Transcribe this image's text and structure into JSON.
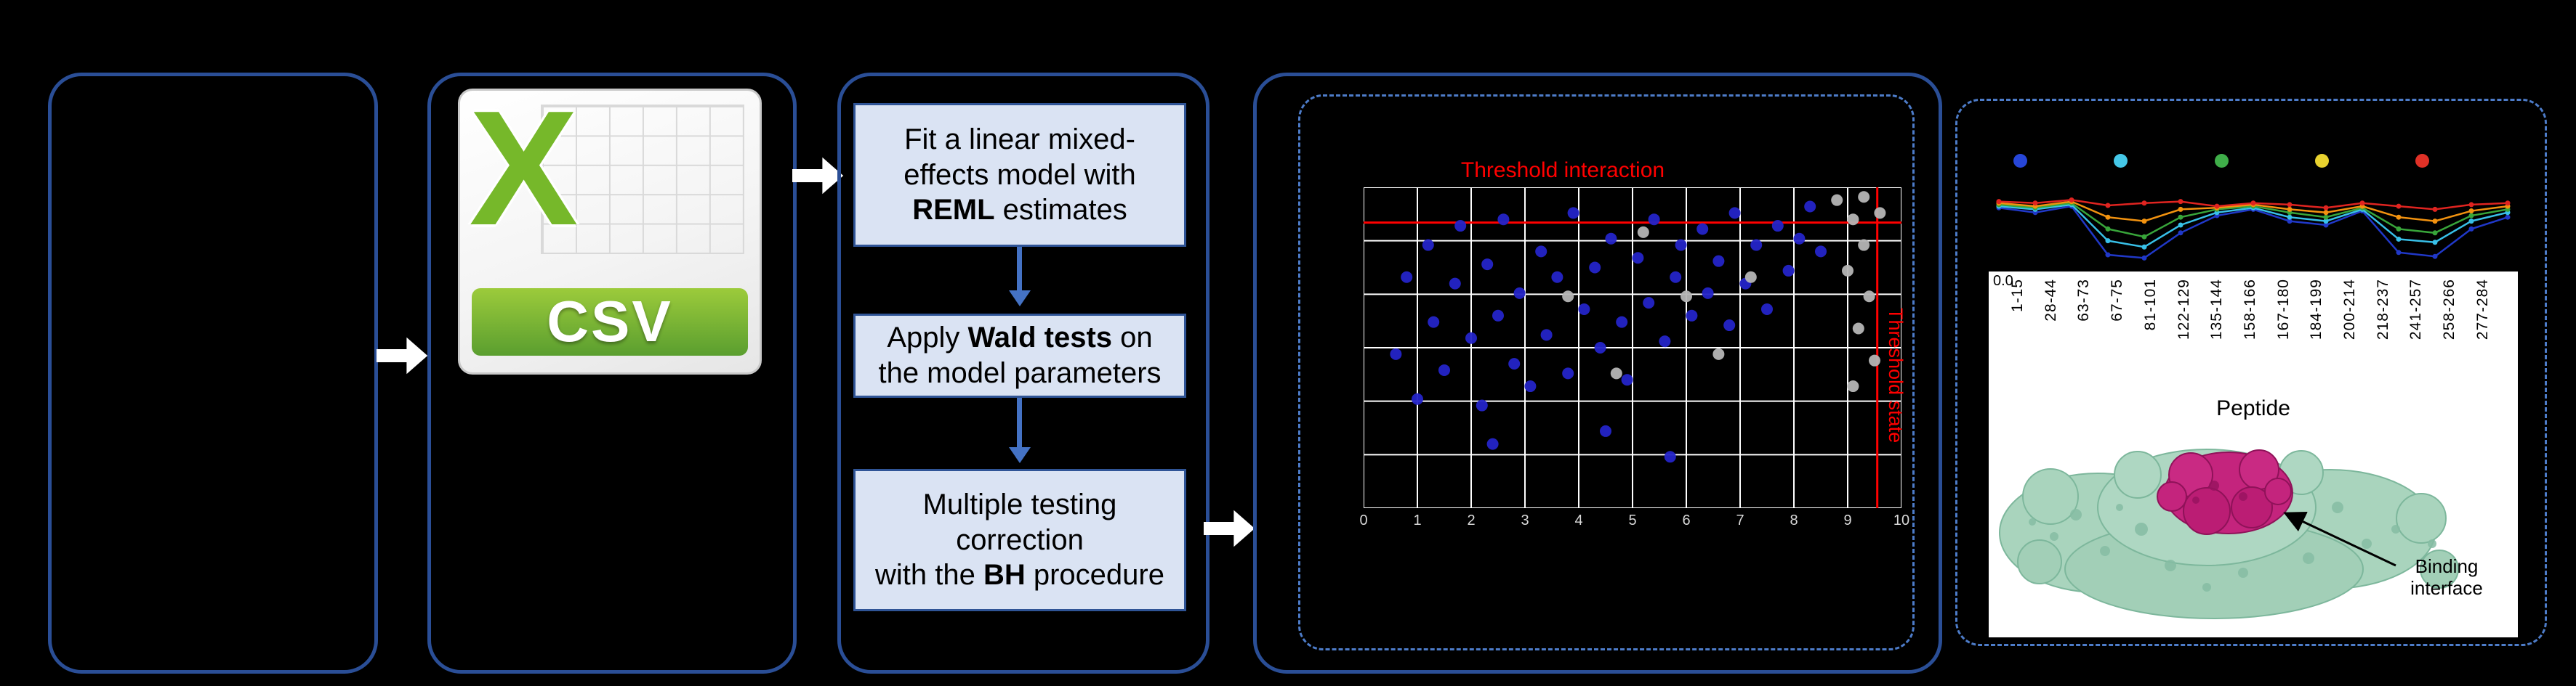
{
  "figure": {
    "background": "#000000",
    "solid_border_color": "#2a4e96",
    "dashed_border_color": "#4d7cc9"
  },
  "csv_icon": {
    "letter": "X",
    "label": "CSV",
    "green": "#76b82a"
  },
  "steps": [
    {
      "line1": "Fit a linear mixed-",
      "line2": "effects model with",
      "line3_bold": "REML",
      "line3_rest": " estimates"
    },
    {
      "line1_pre": "Apply ",
      "line1_bold": "Wald tests",
      "line1_post": " on",
      "line2": "the model parameters"
    },
    {
      "line1": "Multiple testing",
      "line2": "correction",
      "line3_pre": "with the ",
      "line3_bold": "BH",
      "line3_post": " procedure"
    }
  ],
  "chart_data": [
    {
      "type": "scatter",
      "title": "Threshold interaction",
      "right_axis_label": "Threshold state",
      "x_ticks": [
        "0",
        "1",
        "2",
        "3",
        "4",
        "5",
        "6",
        "7",
        "8",
        "9",
        "10"
      ],
      "grid": {
        "cols": 10,
        "rows": 6,
        "color": "#ffffff"
      },
      "threshold_color": "#ff0000",
      "threshold_h_frac": 0.11,
      "threshold_v_frac": 0.955,
      "series": [
        {
          "name": "blue-points",
          "color": "#2424c8",
          "points": [
            [
              0.06,
              0.52
            ],
            [
              0.08,
              0.28
            ],
            [
              0.1,
              0.66
            ],
            [
              0.12,
              0.18
            ],
            [
              0.13,
              0.42
            ],
            [
              0.15,
              0.57
            ],
            [
              0.17,
              0.3
            ],
            [
              0.18,
              0.12
            ],
            [
              0.2,
              0.47
            ],
            [
              0.22,
              0.68
            ],
            [
              0.23,
              0.24
            ],
            [
              0.25,
              0.4
            ],
            [
              0.26,
              0.1
            ],
            [
              0.28,
              0.55
            ],
            [
              0.29,
              0.33
            ],
            [
              0.31,
              0.62
            ],
            [
              0.33,
              0.2
            ],
            [
              0.34,
              0.46
            ],
            [
              0.36,
              0.28
            ],
            [
              0.38,
              0.58
            ],
            [
              0.39,
              0.08
            ],
            [
              0.41,
              0.38
            ],
            [
              0.43,
              0.25
            ],
            [
              0.44,
              0.5
            ],
            [
              0.46,
              0.16
            ],
            [
              0.48,
              0.42
            ],
            [
              0.49,
              0.6
            ],
            [
              0.51,
              0.22
            ],
            [
              0.53,
              0.36
            ],
            [
              0.54,
              0.1
            ],
            [
              0.56,
              0.48
            ],
            [
              0.58,
              0.28
            ],
            [
              0.59,
              0.18
            ],
            [
              0.61,
              0.4
            ],
            [
              0.63,
              0.13
            ],
            [
              0.64,
              0.33
            ],
            [
              0.66,
              0.23
            ],
            [
              0.68,
              0.43
            ],
            [
              0.69,
              0.08
            ],
            [
              0.71,
              0.3
            ],
            [
              0.73,
              0.18
            ],
            [
              0.75,
              0.38
            ],
            [
              0.77,
              0.12
            ],
            [
              0.79,
              0.26
            ],
            [
              0.81,
              0.16
            ],
            [
              0.83,
              0.06
            ],
            [
              0.85,
              0.2
            ],
            [
              0.24,
              0.8
            ],
            [
              0.45,
              0.76
            ],
            [
              0.57,
              0.84
            ]
          ]
        },
        {
          "name": "grey-points",
          "color": "#b5b5b5",
          "points": [
            [
              0.88,
              0.04
            ],
            [
              0.91,
              0.1
            ],
            [
              0.93,
              0.18
            ],
            [
              0.9,
              0.26
            ],
            [
              0.94,
              0.34
            ],
            [
              0.92,
              0.44
            ],
            [
              0.95,
              0.54
            ],
            [
              0.91,
              0.62
            ],
            [
              0.93,
              0.03
            ],
            [
              0.52,
              0.14
            ],
            [
              0.6,
              0.34
            ],
            [
              0.66,
              0.52
            ],
            [
              0.72,
              0.28
            ],
            [
              0.47,
              0.58
            ],
            [
              0.38,
              0.34
            ],
            [
              0.96,
              0.08
            ]
          ]
        }
      ]
    },
    {
      "type": "line",
      "categories": [
        "1-15",
        "28-44",
        "63-73",
        "67-75",
        "81-101",
        "122-129",
        "135-144",
        "158-166",
        "167-180",
        "184-199",
        "200-214",
        "218-237",
        "241-257",
        "258-266",
        "277-284"
      ],
      "xlabel": "Peptide",
      "y_zero_label": "0.0",
      "legend_dot_colors": [
        "#2746d8",
        "#45c8e8",
        "#3fae49",
        "#e8d22f",
        "#e03127"
      ],
      "series": [
        {
          "name": "series-5",
          "color": "#2038c8",
          "values": [
            0.72,
            0.66,
            0.74,
            0.12,
            0.08,
            0.4,
            0.62,
            0.7,
            0.55,
            0.5,
            0.68,
            0.15,
            0.1,
            0.45,
            0.6
          ]
        },
        {
          "name": "series-4",
          "color": "#38c0e8",
          "values": [
            0.74,
            0.7,
            0.76,
            0.3,
            0.22,
            0.5,
            0.66,
            0.72,
            0.6,
            0.55,
            0.7,
            0.32,
            0.28,
            0.55,
            0.66
          ]
        },
        {
          "name": "series-3",
          "color": "#38a53a",
          "values": [
            0.76,
            0.72,
            0.78,
            0.45,
            0.35,
            0.6,
            0.7,
            0.74,
            0.66,
            0.6,
            0.72,
            0.45,
            0.4,
            0.62,
            0.7
          ]
        },
        {
          "name": "series-2",
          "color": "#f2920f",
          "values": [
            0.78,
            0.74,
            0.8,
            0.6,
            0.55,
            0.7,
            0.72,
            0.76,
            0.7,
            0.66,
            0.74,
            0.6,
            0.55,
            0.68,
            0.74
          ]
        },
        {
          "name": "series-1",
          "color": "#e02420",
          "values": [
            0.8,
            0.78,
            0.82,
            0.75,
            0.78,
            0.8,
            0.74,
            0.78,
            0.76,
            0.72,
            0.78,
            0.74,
            0.7,
            0.76,
            0.78
          ]
        }
      ]
    }
  ],
  "protein": {
    "annotation_line1": "Binding",
    "annotation_line2": "interface"
  }
}
